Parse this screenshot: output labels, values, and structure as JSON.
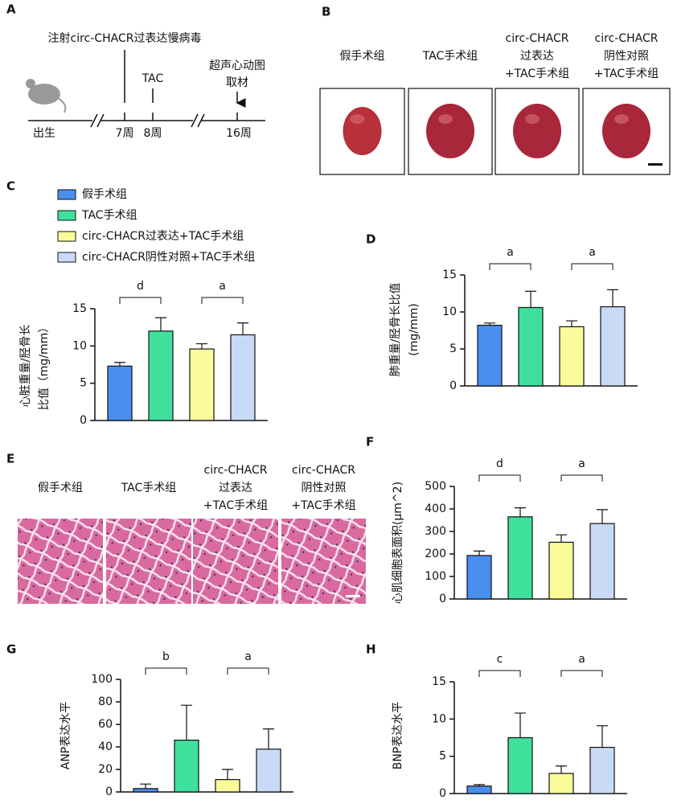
{
  "legend": [
    {
      "name": "假手术组",
      "color": "#4a8ff0"
    },
    {
      "name": "TAC手术组",
      "color": "#3fe09c"
    },
    {
      "name": "circ-CHACR过表达+TAC手术组",
      "color": "#fcfb9c"
    },
    {
      "name": "circ-CHACR阴性对照+TAC手术组",
      "color": "#c9daf6"
    }
  ],
  "panel_a": {
    "panel": "A",
    "injection": "注射circ-CHACR过表达慢病毒",
    "tac": "TAC",
    "echo": "超声心动图",
    "harvest": "取材",
    "birth": "出生",
    "w7": "7周",
    "w8": "8周",
    "w16": "16周"
  },
  "panel_b": {
    "panel": "B",
    "groups": [
      [
        "假手术组"
      ],
      [
        "TAC手术组"
      ],
      [
        "circ-CHACR",
        "过表达",
        "+TAC手术组"
      ],
      [
        "circ-CHACR",
        "阴性对照",
        "+TAC手术组"
      ]
    ]
  },
  "panel_e": {
    "panel": "E",
    "groups": [
      [
        "假手术组"
      ],
      [
        "TAC手术组"
      ],
      [
        "circ-CHACR",
        "过表达",
        "+TAC手术组"
      ],
      [
        "circ-CHACR",
        "阴性对照",
        "+TAC手术组"
      ]
    ]
  },
  "chart_data": [
    {
      "panel": "C",
      "type": "bar",
      "ylabel": [
        "心脏重量/胫骨长",
        "比值（mg/mm）"
      ],
      "values": [
        7.3,
        12.0,
        9.6,
        11.5
      ],
      "errors": [
        0.5,
        1.8,
        0.7,
        1.6
      ],
      "ylim": [
        0,
        15
      ],
      "yticks": [
        0,
        5,
        10,
        15
      ],
      "annotations": [
        "d",
        "a"
      ]
    },
    {
      "panel": "D",
      "type": "bar",
      "ylabel": [
        "肺重量/胫骨长比值",
        "(mg/mm)"
      ],
      "values": [
        8.2,
        10.6,
        8.0,
        10.7
      ],
      "errors": [
        0.3,
        2.2,
        0.8,
        2.3
      ],
      "ylim": [
        0,
        15
      ],
      "yticks": [
        0,
        5,
        10,
        15
      ],
      "annotations": [
        "a",
        "a"
      ]
    },
    {
      "panel": "F",
      "type": "bar",
      "ylabel": [
        "心肌细胞表面积(μm^2)"
      ],
      "values": [
        193,
        365,
        252,
        335
      ],
      "errors": [
        20,
        40,
        33,
        62
      ],
      "ylim": [
        0,
        500
      ],
      "yticks": [
        0,
        100,
        200,
        300,
        400,
        500
      ],
      "annotations": [
        "d",
        "a"
      ]
    },
    {
      "panel": "G",
      "type": "bar",
      "ylabel": [
        "ANP表达水平"
      ],
      "values": [
        3,
        46,
        11,
        38
      ],
      "errors": [
        4,
        31,
        9,
        18
      ],
      "ylim": [
        0,
        100
      ],
      "yticks": [
        0,
        20,
        40,
        60,
        80,
        100
      ],
      "annotations": [
        "b",
        "a"
      ]
    },
    {
      "panel": "H",
      "type": "bar",
      "ylabel": [
        "BNP表达水平"
      ],
      "values": [
        1.0,
        7.5,
        2.7,
        6.2
      ],
      "errors": [
        0.2,
        3.3,
        1.0,
        2.9
      ],
      "ylim": [
        0,
        15
      ],
      "yticks": [
        0,
        5,
        10,
        15
      ],
      "annotations": [
        "c",
        "a"
      ]
    }
  ]
}
